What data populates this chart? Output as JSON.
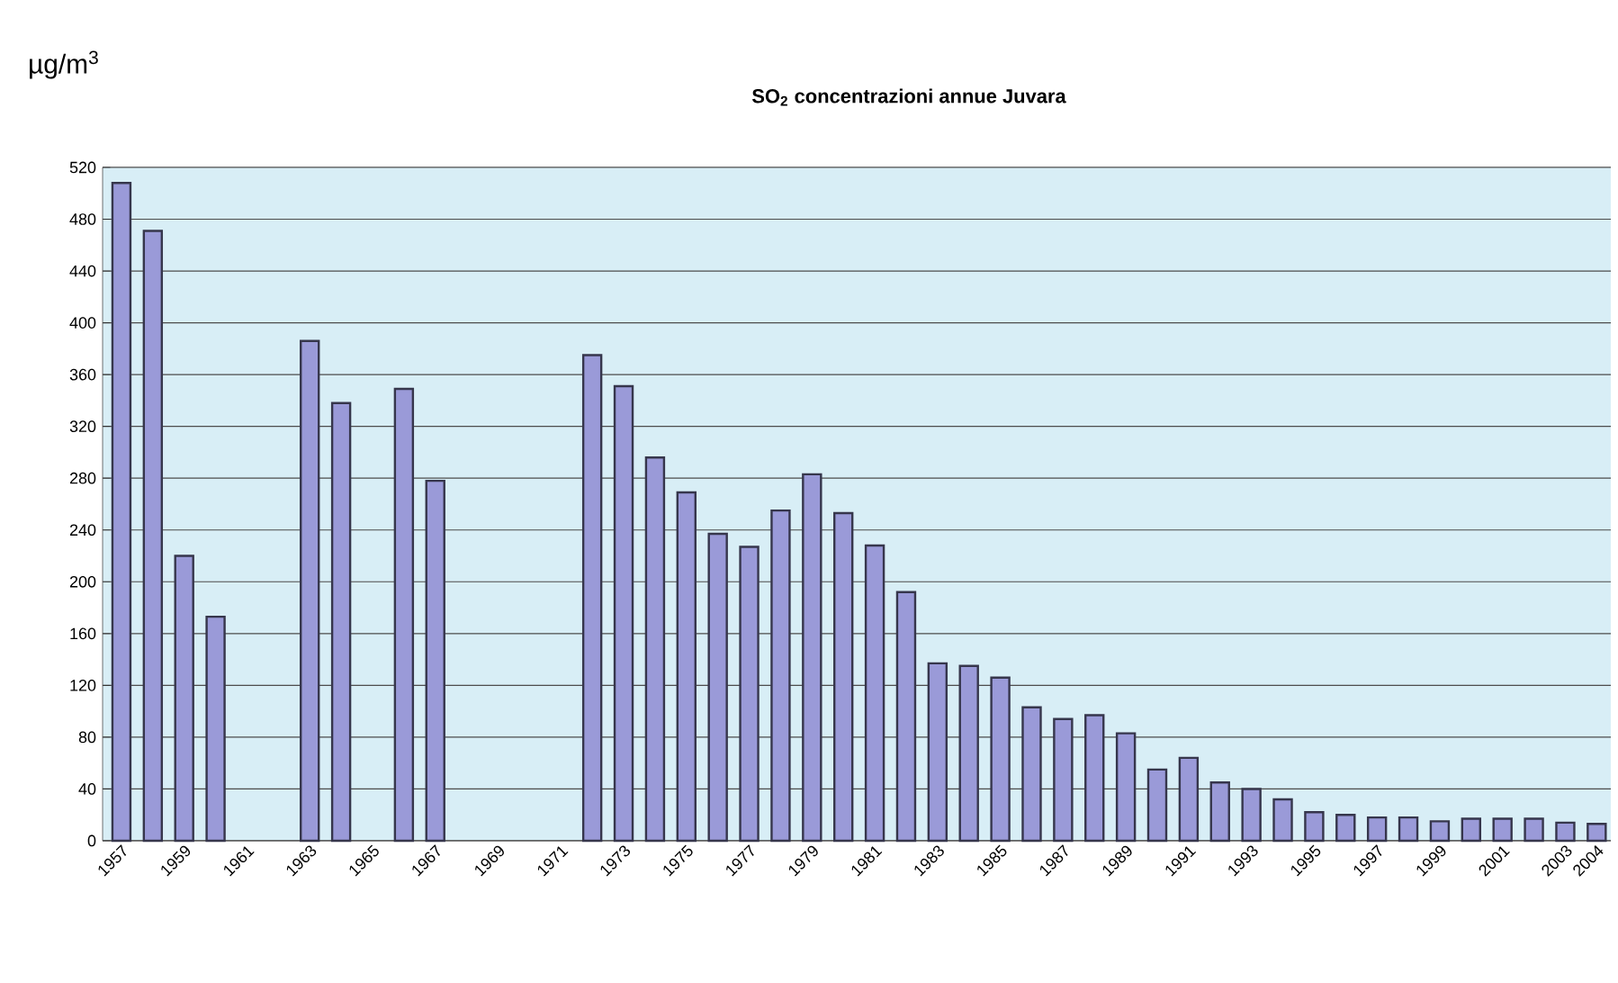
{
  "chart_data": {
    "type": "bar",
    "title": "SO$_{2}$ concentrazioni annue Juvara",
    "ylabel": "µg/m$^{3}$",
    "categories": [
      "1957",
      null,
      "1959",
      null,
      "1961",
      null,
      "1963",
      null,
      "1965",
      null,
      "1967",
      null,
      "1969",
      null,
      "1971",
      null,
      "1973",
      null,
      "1975",
      null,
      "1977",
      null,
      "1979",
      null,
      "1981",
      null,
      "1983",
      null,
      "1985",
      null,
      "1987",
      null,
      "1989",
      null,
      "1991",
      null,
      "1993",
      null,
      "1995",
      null,
      "1997",
      null,
      "1999",
      null,
      "2001",
      null,
      "2003",
      "2004"
    ],
    "values": [
      508,
      471,
      220,
      173,
      null,
      null,
      386,
      338,
      null,
      349,
      278,
      null,
      null,
      null,
      null,
      375,
      351,
      296,
      269,
      237,
      227,
      255,
      283,
      253,
      228,
      192,
      137,
      135,
      126,
      103,
      94,
      97,
      83,
      55,
      64,
      45,
      40,
      32,
      22,
      20,
      18,
      18,
      15,
      17,
      17,
      17,
      14,
      13
    ],
    "color": "#9a9ad8",
    "ylim": [
      0,
      520
    ],
    "yticks": [
      0,
      40,
      80,
      120,
      160,
      200,
      240,
      280,
      320,
      360,
      400,
      440,
      480,
      520
    ],
    "grid": "y"
  }
}
